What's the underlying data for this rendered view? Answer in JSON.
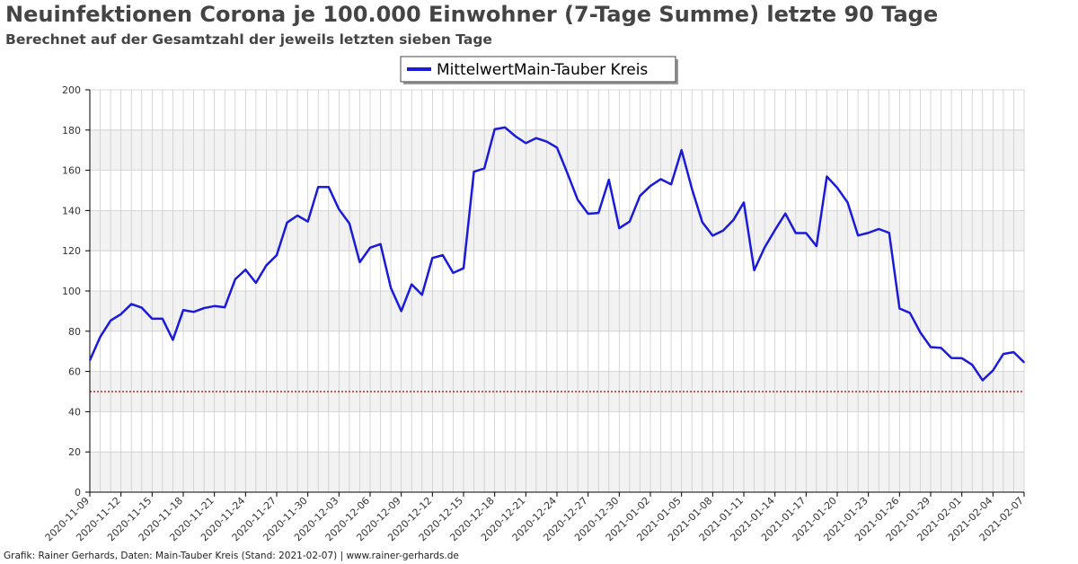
{
  "header": {
    "title": "Neuinfektionen Corona je 100.000 Einwohner (7-Tage Summe) letzte 90 Tage",
    "subtitle": "Berechnet auf der Gesamtzahl der jeweils letzten sieben Tage"
  },
  "footer": {
    "credit": "Grafik: Rainer Gerhards, Daten: Main-Tauber Kreis (Stand: 2021-02-07) | www.rainer-gerhards.de"
  },
  "colors": {
    "series": "#1a1adb",
    "threshold": "#aa0000",
    "band": "#f2f2f2",
    "grid": "#cccccc"
  },
  "chart_data": {
    "type": "line",
    "title": "Neuinfektionen Corona je 100.000 Einwohner (7-Tage Summe) letzte 90 Tage",
    "subtitle": "Berechnet auf der Gesamtzahl der jeweils letzten sieben Tage",
    "xlabel": "",
    "ylabel": "",
    "ylim": [
      0,
      200
    ],
    "yticks": [
      0,
      20,
      40,
      60,
      80,
      100,
      120,
      140,
      160,
      180,
      200
    ],
    "x_start": "2020-11-09",
    "xticks": [
      "2020-11-09",
      "2020-11-12",
      "2020-11-15",
      "2020-11-18",
      "2020-11-21",
      "2020-11-24",
      "2020-11-27",
      "2020-11-30",
      "2020-12-03",
      "2020-12-06",
      "2020-12-09",
      "2020-12-12",
      "2020-12-15",
      "2020-12-18",
      "2020-12-21",
      "2020-12-24",
      "2020-12-27",
      "2020-12-30",
      "2021-01-02",
      "2021-01-05",
      "2021-01-08",
      "2021-01-11",
      "2021-01-14",
      "2021-01-17",
      "2021-01-20",
      "2021-01-23",
      "2021-01-26",
      "2021-01-29",
      "2021-02-01",
      "2021-02-04",
      "2021-02-07"
    ],
    "grid": true,
    "legend_position": "top-center",
    "threshold": 50,
    "series": [
      {
        "name": "MittelwertMain-Tauber Kreis",
        "values": [
          65.5,
          77.2,
          85.3,
          88.5,
          93.5,
          91.7,
          86.2,
          86.2,
          75.7,
          90.5,
          89.6,
          91.5,
          92.5,
          91.9,
          105.8,
          110.6,
          104.0,
          112.7,
          117.8,
          134.0,
          137.5,
          134.5,
          151.7,
          151.7,
          140.6,
          133.6,
          114.3,
          121.5,
          123.3,
          101.5,
          90.0,
          103.3,
          98.1,
          116.4,
          117.8,
          109.0,
          111.3,
          159.3,
          160.9,
          180.4,
          181.3,
          176.9,
          173.5,
          176.0,
          174.3,
          171.3,
          158.6,
          145.3,
          138.4,
          138.8,
          155.3,
          131.2,
          134.5,
          147.3,
          152.2,
          155.6,
          153.0,
          170.0,
          150.8,
          134.2,
          127.5,
          130.0,
          135.3,
          144.0,
          110.3,
          121.6,
          130.3,
          138.5,
          128.8,
          128.8,
          122.3,
          156.9,
          151.3,
          144.0,
          127.6,
          128.9,
          130.8,
          128.9,
          91.3,
          89.1,
          79.4,
          72.1,
          71.7,
          66.7,
          66.6,
          63.3,
          55.6,
          60.5,
          68.7,
          69.6,
          64.5
        ]
      }
    ]
  }
}
